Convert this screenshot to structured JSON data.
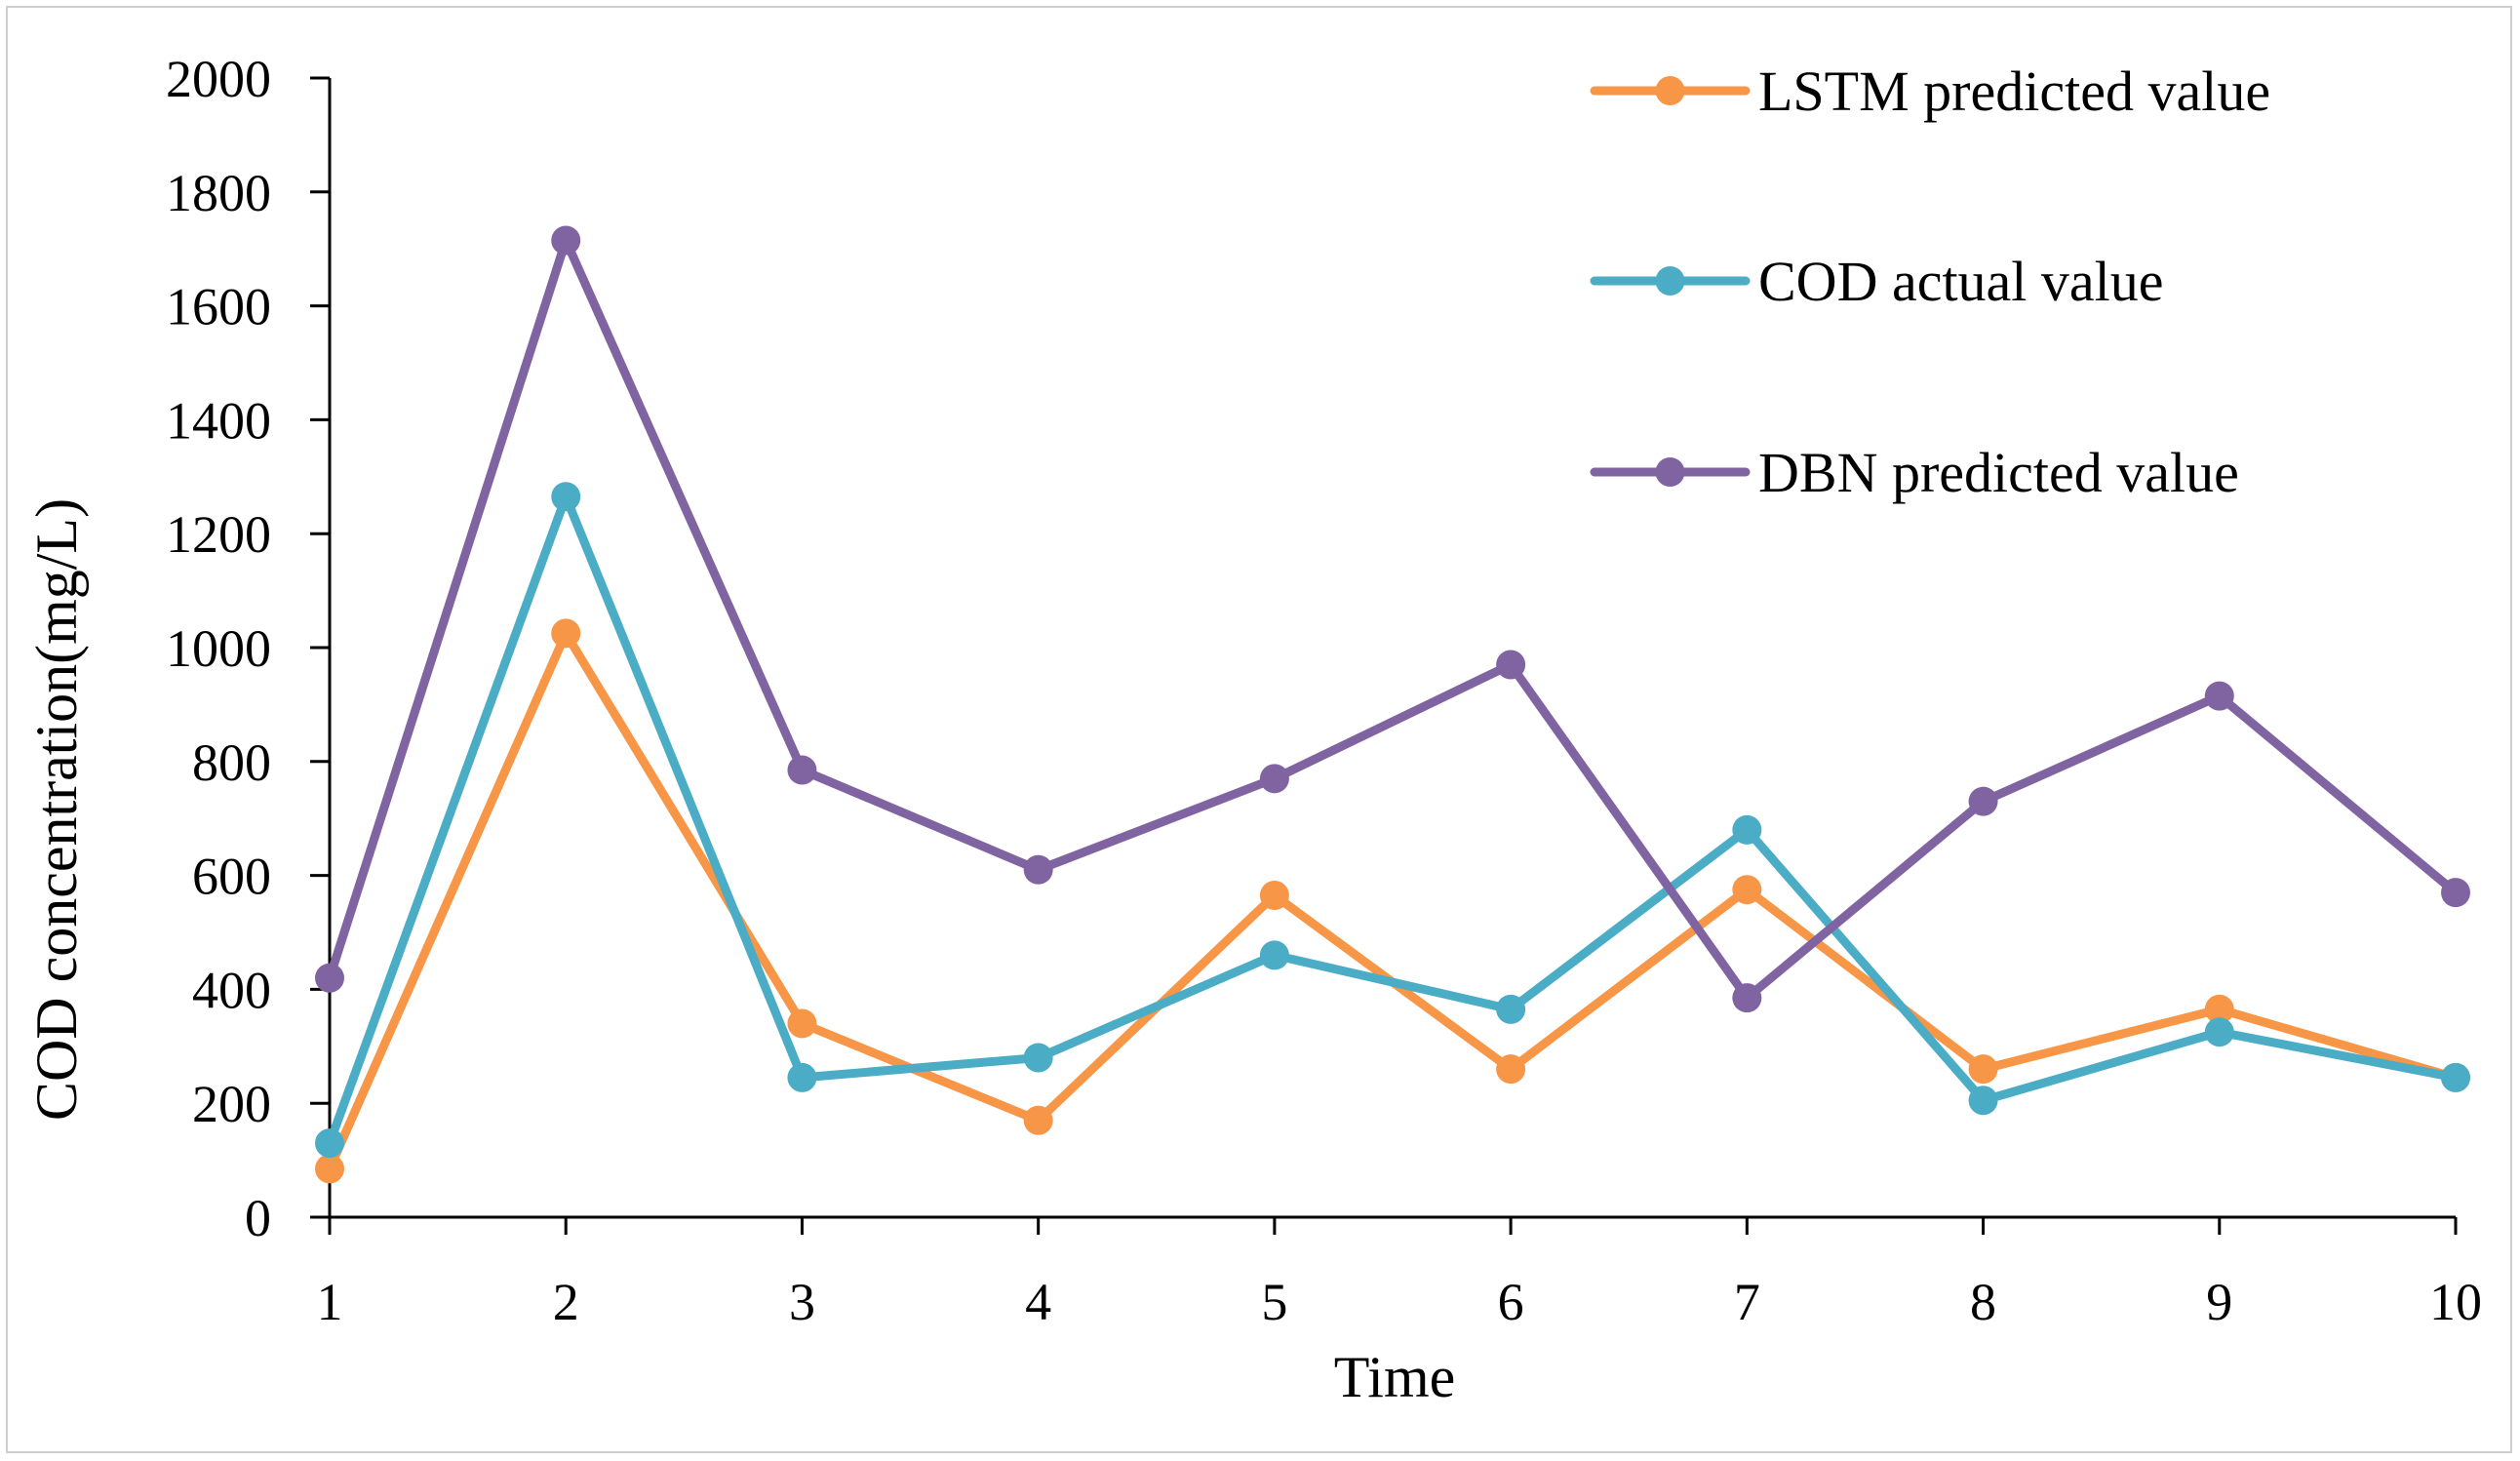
{
  "chart_data": {
    "type": "line",
    "title": "",
    "xlabel": "Time",
    "ylabel": "COD concentration(mg/L)",
    "categories": [
      "1",
      "2",
      "3",
      "4",
      "5",
      "6",
      "7",
      "8",
      "9",
      "10"
    ],
    "ylim": [
      0,
      2000
    ],
    "yticks": [
      "0",
      "200",
      "400",
      "600",
      "800",
      "1000",
      "1200",
      "1400",
      "1600",
      "1800",
      "2000"
    ],
    "grid": false,
    "legend_position": "top-right",
    "series": [
      {
        "name": "LSTM predicted value",
        "color": "#F79646",
        "values": [
          85,
          1025,
          340,
          170,
          565,
          260,
          575,
          260,
          365,
          245
        ]
      },
      {
        "name": "COD actual value",
        "color": "#4BACC6",
        "values": [
          130,
          1265,
          245,
          280,
          460,
          365,
          680,
          205,
          325,
          245
        ]
      },
      {
        "name": "DBN predicted value",
        "color": "#8064A2",
        "values": [
          420,
          1715,
          785,
          610,
          770,
          970,
          385,
          730,
          915,
          570
        ]
      }
    ]
  }
}
